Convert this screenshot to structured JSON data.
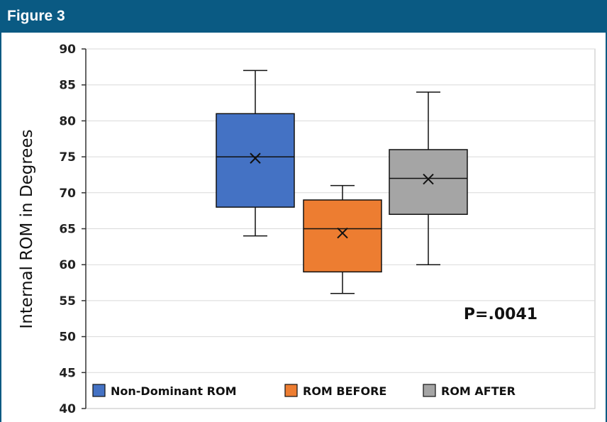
{
  "header": {
    "title": "Figure 3"
  },
  "colors": {
    "header_bg": "#0a5a83",
    "grid": "#d9d9d9"
  },
  "chart_data": {
    "type": "box",
    "ylabel": "Internal ROM in Degrees",
    "xlabel": "",
    "ylim": [
      40,
      90
    ],
    "yticks": [
      40,
      45,
      50,
      55,
      60,
      65,
      70,
      75,
      80,
      85,
      90
    ],
    "grid": true,
    "annotation": "P=.0041",
    "legend_position": "bottom",
    "series": [
      {
        "name": "Non-Dominant ROM",
        "color": "#4472c4",
        "min": 64,
        "q1": 68,
        "median": 75,
        "q3": 81,
        "max": 87,
        "mean": 74.8
      },
      {
        "name": "ROM BEFORE",
        "color": "#ed7d31",
        "min": 56,
        "q1": 59,
        "median": 65,
        "q3": 69,
        "max": 71,
        "mean": 64.4
      },
      {
        "name": "ROM AFTER",
        "color": "#a5a5a5",
        "min": 60,
        "q1": 67,
        "median": 72,
        "q3": 76,
        "max": 84,
        "mean": 71.9
      }
    ]
  }
}
